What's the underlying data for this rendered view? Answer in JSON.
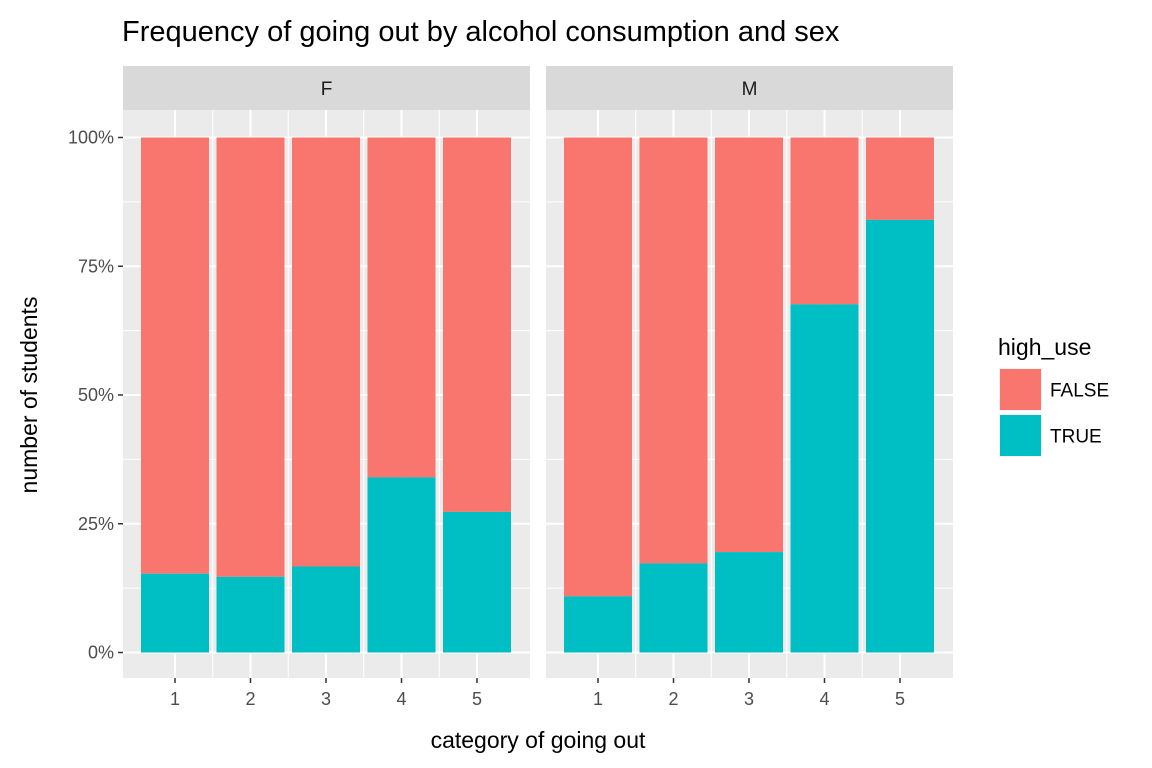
{
  "chart_data": {
    "type": "bar",
    "stacked": "fill",
    "title": "Frequency of going out by alcohol consumption and sex",
    "xlabel": "category of going out",
    "ylabel": "number of students",
    "ylim": [
      0,
      1
    ],
    "y_ticks": [
      {
        "value": 0,
        "label": "0%"
      },
      {
        "value": 0.25,
        "label": "25%"
      },
      {
        "value": 0.5,
        "label": "50%"
      },
      {
        "value": 0.75,
        "label": "75%"
      },
      {
        "value": 1,
        "label": "100%"
      }
    ],
    "categories": [
      "1",
      "2",
      "3",
      "4",
      "5"
    ],
    "facet_variable": "sex",
    "grid": true,
    "legend": {
      "title": "high_use",
      "placement": "right",
      "entries": [
        {
          "label": "FALSE",
          "color": "#F8766D"
        },
        {
          "label": "TRUE",
          "color": "#00BFC4"
        }
      ]
    },
    "facets": [
      {
        "label": "F",
        "series": [
          {
            "name": "TRUE",
            "values": [
              0.153,
              0.147,
              0.167,
              0.34,
              0.273
            ]
          },
          {
            "name": "FALSE",
            "values": [
              0.847,
              0.853,
              0.833,
              0.66,
              0.727
            ]
          }
        ]
      },
      {
        "label": "M",
        "series": [
          {
            "name": "TRUE",
            "values": [
              0.109,
              0.173,
              0.195,
              0.676,
              0.84
            ]
          },
          {
            "name": "FALSE",
            "values": [
              0.891,
              0.827,
              0.805,
              0.324,
              0.16
            ]
          }
        ]
      }
    ]
  }
}
